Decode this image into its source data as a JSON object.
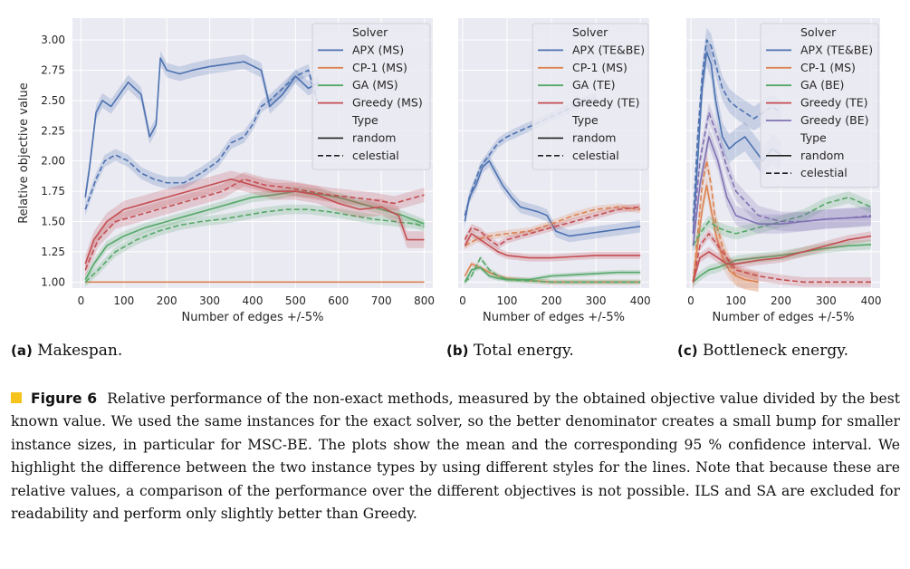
{
  "chart_data": [
    {
      "type": "line",
      "xlabel": "Number of edges +/-5%",
      "ylabel": "Relative objective value",
      "xlim": [
        -20,
        820
      ],
      "ylim": [
        0.95,
        3.18
      ],
      "xticks": [
        0,
        100,
        200,
        300,
        400,
        500,
        600,
        700,
        800
      ],
      "yticks": [
        1.0,
        1.25,
        1.5,
        1.75,
        2.0,
        2.25,
        2.5,
        2.75,
        3.0
      ],
      "ytick_labels": [
        "1.00",
        "1.25",
        "1.50",
        "1.75",
        "2.00",
        "2.25",
        "2.50",
        "2.75",
        "3.00"
      ],
      "legend": {
        "placement": "top-right",
        "solver_title": "Solver",
        "type_title": "Type",
        "type_random": "random",
        "type_celestial": "celestial"
      },
      "series": [
        {
          "name": "APX (MS)",
          "color": "#4c72b0",
          "style": "random",
          "ci": 0.06,
          "x": [
            10,
            20,
            35,
            50,
            70,
            90,
            110,
            140,
            160,
            175,
            185,
            200,
            230,
            260,
            300,
            340,
            380,
            420,
            440,
            470,
            500,
            530,
            555
          ],
          "y": [
            1.7,
            1.95,
            2.4,
            2.5,
            2.45,
            2.55,
            2.65,
            2.55,
            2.2,
            2.3,
            2.85,
            2.75,
            2.72,
            2.75,
            2.78,
            2.8,
            2.82,
            2.75,
            2.45,
            2.55,
            2.7,
            2.6,
            2.65
          ]
        },
        {
          "name": "APX (MS)",
          "color": "#4c72b0",
          "style": "celestial",
          "ci": 0.05,
          "x": [
            10,
            20,
            35,
            55,
            80,
            110,
            140,
            170,
            200,
            240,
            280,
            320,
            350,
            380,
            400,
            420,
            440,
            470,
            500,
            530,
            550
          ],
          "y": [
            1.6,
            1.7,
            1.85,
            2.0,
            2.05,
            2.0,
            1.9,
            1.85,
            1.82,
            1.82,
            1.9,
            2.0,
            2.15,
            2.2,
            2.3,
            2.45,
            2.5,
            2.6,
            2.7,
            2.75,
            2.5
          ]
        },
        {
          "name": "CP-1 (MS)",
          "color": "#dd8452",
          "style": "random",
          "ci": 0.0,
          "x": [
            10,
            800
          ],
          "y": [
            1.0,
            1.0
          ]
        },
        {
          "name": "GA (MS)",
          "color": "#55a868",
          "style": "random",
          "ci": 0.04,
          "x": [
            10,
            30,
            60,
            100,
            150,
            200,
            250,
            300,
            350,
            400,
            450,
            500,
            550,
            600,
            650,
            700,
            750,
            800
          ],
          "y": [
            1.02,
            1.15,
            1.3,
            1.38,
            1.45,
            1.5,
            1.55,
            1.6,
            1.65,
            1.7,
            1.72,
            1.75,
            1.73,
            1.7,
            1.65,
            1.6,
            1.55,
            1.48
          ]
        },
        {
          "name": "GA (MS)",
          "color": "#55a868",
          "style": "celestial",
          "ci": 0.04,
          "x": [
            10,
            40,
            80,
            130,
            180,
            230,
            280,
            330,
            380,
            430,
            480,
            530,
            580,
            630,
            680,
            730,
            780,
            800
          ],
          "y": [
            1.0,
            1.1,
            1.25,
            1.35,
            1.42,
            1.47,
            1.5,
            1.52,
            1.55,
            1.58,
            1.6,
            1.6,
            1.58,
            1.55,
            1.52,
            1.5,
            1.48,
            1.46
          ]
        },
        {
          "name": "Greedy (MS)",
          "color": "#c44e52",
          "style": "random",
          "ci": 0.07,
          "x": [
            10,
            30,
            60,
            100,
            150,
            200,
            250,
            300,
            350,
            400,
            450,
            500,
            550,
            600,
            650,
            700,
            740,
            760,
            800
          ],
          "y": [
            1.15,
            1.35,
            1.5,
            1.6,
            1.65,
            1.7,
            1.75,
            1.8,
            1.85,
            1.8,
            1.75,
            1.75,
            1.72,
            1.65,
            1.6,
            1.62,
            1.55,
            1.35,
            1.35
          ]
        },
        {
          "name": "Greedy (MS)",
          "color": "#c44e52",
          "style": "celestial",
          "ci": 0.06,
          "x": [
            10,
            40,
            80,
            130,
            180,
            230,
            280,
            330,
            380,
            430,
            480,
            530,
            580,
            630,
            680,
            730,
            780,
            800
          ],
          "y": [
            1.1,
            1.35,
            1.5,
            1.55,
            1.6,
            1.65,
            1.7,
            1.75,
            1.85,
            1.8,
            1.78,
            1.75,
            1.72,
            1.7,
            1.68,
            1.65,
            1.7,
            1.72
          ]
        }
      ]
    },
    {
      "type": "line",
      "xlabel": "Number of edges +/-5%",
      "xlim": [
        -10,
        420
      ],
      "ylim": [
        0.95,
        3.18
      ],
      "xticks": [
        0,
        100,
        200,
        300,
        400
      ],
      "legend": {
        "placement": "top-right",
        "solver_title": "Solver",
        "type_title": "Type",
        "type_random": "random",
        "type_celestial": "celestial"
      },
      "series": [
        {
          "name": "APX (TE&BE)",
          "color": "#4c72b0",
          "style": "random",
          "ci": 0.05,
          "x": [
            5,
            15,
            30,
            45,
            60,
            75,
            90,
            110,
            130,
            150,
            170,
            190,
            210,
            240,
            280,
            320,
            360,
            400
          ],
          "y": [
            1.5,
            1.7,
            1.8,
            1.95,
            2.0,
            1.9,
            1.8,
            1.7,
            1.62,
            1.6,
            1.58,
            1.55,
            1.42,
            1.38,
            1.4,
            1.42,
            1.44,
            1.46
          ]
        },
        {
          "name": "APX (TE&BE)",
          "color": "#4c72b0",
          "style": "celestial",
          "ci": 0.04,
          "x": [
            5,
            20,
            40,
            60,
            80,
            100,
            130,
            160,
            190,
            220,
            250,
            280,
            300
          ],
          "y": [
            1.55,
            1.75,
            1.95,
            2.05,
            2.15,
            2.2,
            2.25,
            2.3,
            2.35,
            2.4,
            2.45,
            2.5,
            2.52
          ]
        },
        {
          "name": "CP-1 (MS)",
          "color": "#dd8452",
          "style": "random",
          "ci": 0.02,
          "x": [
            5,
            20,
            40,
            60,
            80,
            100,
            130,
            160,
            200,
            250,
            300,
            350,
            400
          ],
          "y": [
            1.05,
            1.15,
            1.12,
            1.08,
            1.05,
            1.03,
            1.02,
            1.01,
            1.0,
            1.0,
            1.0,
            1.0,
            1.0
          ]
        },
        {
          "name": "CP-1 (MS)",
          "color": "#dd8452",
          "style": "celestial",
          "ci": 0.03,
          "x": [
            5,
            30,
            60,
            100,
            150,
            200,
            250,
            300,
            350,
            400
          ],
          "y": [
            1.3,
            1.35,
            1.38,
            1.4,
            1.42,
            1.48,
            1.55,
            1.6,
            1.62,
            1.6
          ]
        },
        {
          "name": "GA (TE)",
          "color": "#55a868",
          "style": "random",
          "ci": 0.02,
          "x": [
            5,
            20,
            40,
            60,
            80,
            100,
            150,
            200,
            250,
            300,
            350,
            400
          ],
          "y": [
            1.0,
            1.1,
            1.12,
            1.05,
            1.03,
            1.02,
            1.02,
            1.05,
            1.06,
            1.07,
            1.08,
            1.08
          ]
        },
        {
          "name": "GA (TE)",
          "color": "#55a868",
          "style": "celestial",
          "ci": 0.02,
          "x": [
            5,
            20,
            40,
            60,
            80,
            100,
            150,
            200,
            250,
            300,
            350,
            400
          ],
          "y": [
            1.0,
            1.05,
            1.2,
            1.1,
            1.05,
            1.02,
            1.01,
            1.0,
            1.0,
            1.0,
            1.0,
            1.0
          ]
        },
        {
          "name": "Greedy (TE)",
          "color": "#c44e52",
          "style": "random",
          "ci": 0.03,
          "x": [
            5,
            20,
            40,
            60,
            80,
            100,
            150,
            200,
            250,
            300,
            350,
            400
          ],
          "y": [
            1.3,
            1.4,
            1.35,
            1.3,
            1.25,
            1.22,
            1.2,
            1.2,
            1.21,
            1.22,
            1.22,
            1.22
          ]
        },
        {
          "name": "Greedy (TE)",
          "color": "#c44e52",
          "style": "celestial",
          "ci": 0.03,
          "x": [
            5,
            20,
            40,
            60,
            80,
            100,
            150,
            200,
            250,
            300,
            350,
            400
          ],
          "y": [
            1.35,
            1.45,
            1.42,
            1.35,
            1.3,
            1.35,
            1.4,
            1.45,
            1.5,
            1.55,
            1.6,
            1.62
          ]
        }
      ]
    },
    {
      "type": "line",
      "xlabel": "Number of edges +/-5%",
      "xlim": [
        -10,
        420
      ],
      "ylim": [
        0.95,
        3.18
      ],
      "xticks": [
        0,
        100,
        200,
        300,
        400
      ],
      "legend": {
        "placement": "top-right",
        "solver_title": "Solver",
        "type_title": "Type",
        "type_random": "random",
        "type_celestial": "celestial"
      },
      "series": [
        {
          "name": "APX (TE&BE)",
          "color": "#4c72b0",
          "style": "random",
          "ci": 0.12,
          "x": [
            5,
            15,
            25,
            35,
            45,
            55,
            70,
            85,
            100,
            120,
            140,
            160,
            180,
            200
          ],
          "y": [
            1.4,
            2.0,
            2.6,
            2.9,
            2.8,
            2.5,
            2.2,
            2.1,
            2.15,
            2.2,
            2.1,
            2.0,
            2.1,
            2.05
          ]
        },
        {
          "name": "APX (TE&BE)",
          "color": "#4c72b0",
          "style": "celestial",
          "ci": 0.1,
          "x": [
            5,
            15,
            25,
            35,
            45,
            55,
            70,
            85,
            100,
            120,
            140,
            160,
            180,
            200
          ],
          "y": [
            1.5,
            2.2,
            2.7,
            3.0,
            2.95,
            2.8,
            2.6,
            2.5,
            2.45,
            2.4,
            2.35,
            2.4,
            2.45,
            2.4
          ]
        },
        {
          "name": "CP-1 (MS)",
          "color": "#dd8452",
          "style": "random",
          "ci": 0.08,
          "x": [
            5,
            15,
            25,
            35,
            45,
            55,
            70,
            85,
            100,
            120,
            150
          ],
          "y": [
            1.0,
            1.3,
            1.6,
            1.8,
            1.6,
            1.4,
            1.2,
            1.1,
            1.05,
            1.02,
            1.0
          ]
        },
        {
          "name": "CP-1 (MS)",
          "color": "#dd8452",
          "style": "celestial",
          "ci": 0.08,
          "x": [
            5,
            15,
            25,
            35,
            45,
            55,
            70,
            85,
            100,
            120,
            150
          ],
          "y": [
            1.0,
            1.4,
            1.8,
            2.0,
            1.8,
            1.5,
            1.3,
            1.15,
            1.05,
            1.02,
            1.0
          ]
        },
        {
          "name": "GA (BE)",
          "color": "#55a868",
          "style": "random",
          "ci": 0.04,
          "x": [
            5,
            20,
            40,
            60,
            80,
            100,
            150,
            200,
            250,
            300,
            350,
            400
          ],
          "y": [
            1.0,
            1.05,
            1.1,
            1.12,
            1.15,
            1.18,
            1.2,
            1.22,
            1.25,
            1.28,
            1.3,
            1.31
          ]
        },
        {
          "name": "GA (BE)",
          "color": "#55a868",
          "style": "celestial",
          "ci": 0.05,
          "x": [
            5,
            20,
            40,
            60,
            80,
            100,
            150,
            200,
            250,
            300,
            350,
            400
          ],
          "y": [
            1.3,
            1.4,
            1.5,
            1.45,
            1.42,
            1.4,
            1.45,
            1.5,
            1.55,
            1.65,
            1.7,
            1.62
          ]
        },
        {
          "name": "Greedy (TE)",
          "color": "#c44e52",
          "style": "random",
          "ci": 0.04,
          "x": [
            5,
            20,
            40,
            60,
            80,
            100,
            150,
            200,
            250,
            300,
            350,
            400
          ],
          "y": [
            1.0,
            1.2,
            1.25,
            1.2,
            1.15,
            1.15,
            1.18,
            1.2,
            1.25,
            1.3,
            1.35,
            1.38
          ]
        },
        {
          "name": "Greedy (TE)",
          "color": "#c44e52",
          "style": "celestial",
          "ci": 0.04,
          "x": [
            5,
            20,
            40,
            60,
            80,
            100,
            150,
            200,
            250,
            300,
            350,
            400
          ],
          "y": [
            1.0,
            1.3,
            1.4,
            1.3,
            1.2,
            1.1,
            1.05,
            1.02,
            1.0,
            1.0,
            1.0,
            1.0
          ]
        },
        {
          "name": "Greedy (BE)",
          "color": "#8172b3",
          "style": "random",
          "ci": 0.08,
          "x": [
            5,
            20,
            40,
            60,
            80,
            100,
            150,
            200,
            250,
            300,
            350,
            400
          ],
          "y": [
            1.3,
            1.8,
            2.2,
            2.0,
            1.7,
            1.55,
            1.48,
            1.48,
            1.5,
            1.52,
            1.53,
            1.54
          ]
        },
        {
          "name": "Greedy (BE)",
          "color": "#8172b3",
          "style": "celestial",
          "ci": 0.08,
          "x": [
            5,
            20,
            40,
            60,
            80,
            100,
            150,
            200,
            250,
            300,
            350,
            400
          ],
          "y": [
            1.4,
            2.0,
            2.4,
            2.2,
            1.95,
            1.75,
            1.55,
            1.5,
            1.5,
            1.52,
            1.53,
            1.55
          ]
        }
      ]
    }
  ],
  "subcaptions": [
    {
      "label": "(a)",
      "text": "Makespan."
    },
    {
      "label": "(b)",
      "text": "Total energy."
    },
    {
      "label": "(c)",
      "text": "Bottleneck energy."
    }
  ],
  "caption": {
    "label": "Figure 6",
    "text": "Relative performance of the non-exact methods, measured by the obtained objective value divided by the best known value. We used the same instances for the exact solver, so the better denominator creates a small bump for smaller instance sizes, in particular for MSC-BE. The plots show the mean and the corresponding 95 % confidence interval. We highlight the difference between the two instance types by using different styles for the lines. Note that because these are relative values, a comparison of the performance over the different objectives is not possible. ILS and SA are excluded for readability and perform only slightly better than Greedy.",
    "marker_color": "#f6c31c"
  }
}
